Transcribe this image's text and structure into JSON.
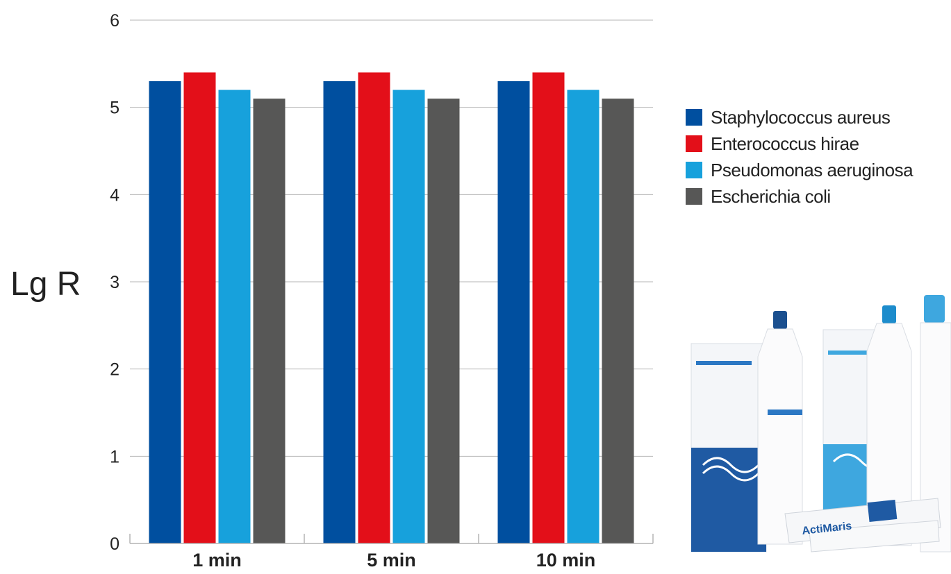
{
  "colors": {
    "staphylococcus": "#004f9f",
    "enterococcus": "#e30f19",
    "pseudomonas": "#17a1dc",
    "escherichia": "#575756",
    "grid": "#b4b4b4",
    "text": "#222222"
  },
  "chart_data": {
    "type": "bar",
    "title": "",
    "xlabel": "",
    "ylabel": "Lg R",
    "ylim": [
      0,
      6
    ],
    "yticks": [
      "0",
      "1",
      "2",
      "3",
      "4",
      "5",
      "6"
    ],
    "grid": true,
    "legend_position": "right",
    "categories": [
      "1 min",
      "5 min",
      "10 min"
    ],
    "series": [
      {
        "name": "Staphylococcus aureus",
        "color": "#004f9f",
        "values": [
          5.3,
          5.3,
          5.3
        ]
      },
      {
        "name": "Enterococcus hirae",
        "color": "#e30f19",
        "values": [
          5.4,
          5.4,
          5.4
        ]
      },
      {
        "name": "Pseudomonas aeruginosa",
        "color": "#17a1dc",
        "values": [
          5.2,
          5.2,
          5.2
        ]
      },
      {
        "name": "Escherichia coli",
        "color": "#575756",
        "values": [
          5.1,
          5.1,
          5.1
        ]
      }
    ]
  },
  "product_photo": {
    "brand_name": "ActiMaris"
  }
}
